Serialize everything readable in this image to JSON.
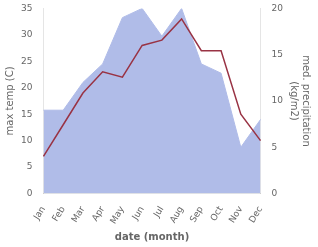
{
  "chart_data": {
    "type": "line",
    "categories": [
      "Jan",
      "Feb",
      "Mar",
      "Apr",
      "May",
      "Jun",
      "Jul",
      "Aug",
      "Sep",
      "Oct",
      "Nov",
      "Dec"
    ],
    "series": [
      {
        "type": "area",
        "color": "#b0bce8",
        "axis": "y2",
        "values": [
          9,
          9,
          12,
          14,
          19,
          20,
          17,
          20,
          14,
          13,
          5,
          8
        ]
      },
      {
        "type": "line",
        "color": "#993344",
        "values": [
          7,
          13,
          19,
          23,
          22,
          28,
          29,
          33,
          27,
          27,
          15,
          10
        ]
      }
    ],
    "xlabel": "date (month)",
    "ylabel": "max temp (C)",
    "y2label": "med. precipitation\n(kg/m2)",
    "ylim": [
      0,
      35
    ],
    "yticks": [
      0,
      5,
      10,
      15,
      20,
      25,
      30,
      35
    ],
    "y2lim": [
      0,
      20
    ],
    "y2ticks": [
      0,
      5,
      10,
      15,
      20
    ],
    "grid": false
  }
}
